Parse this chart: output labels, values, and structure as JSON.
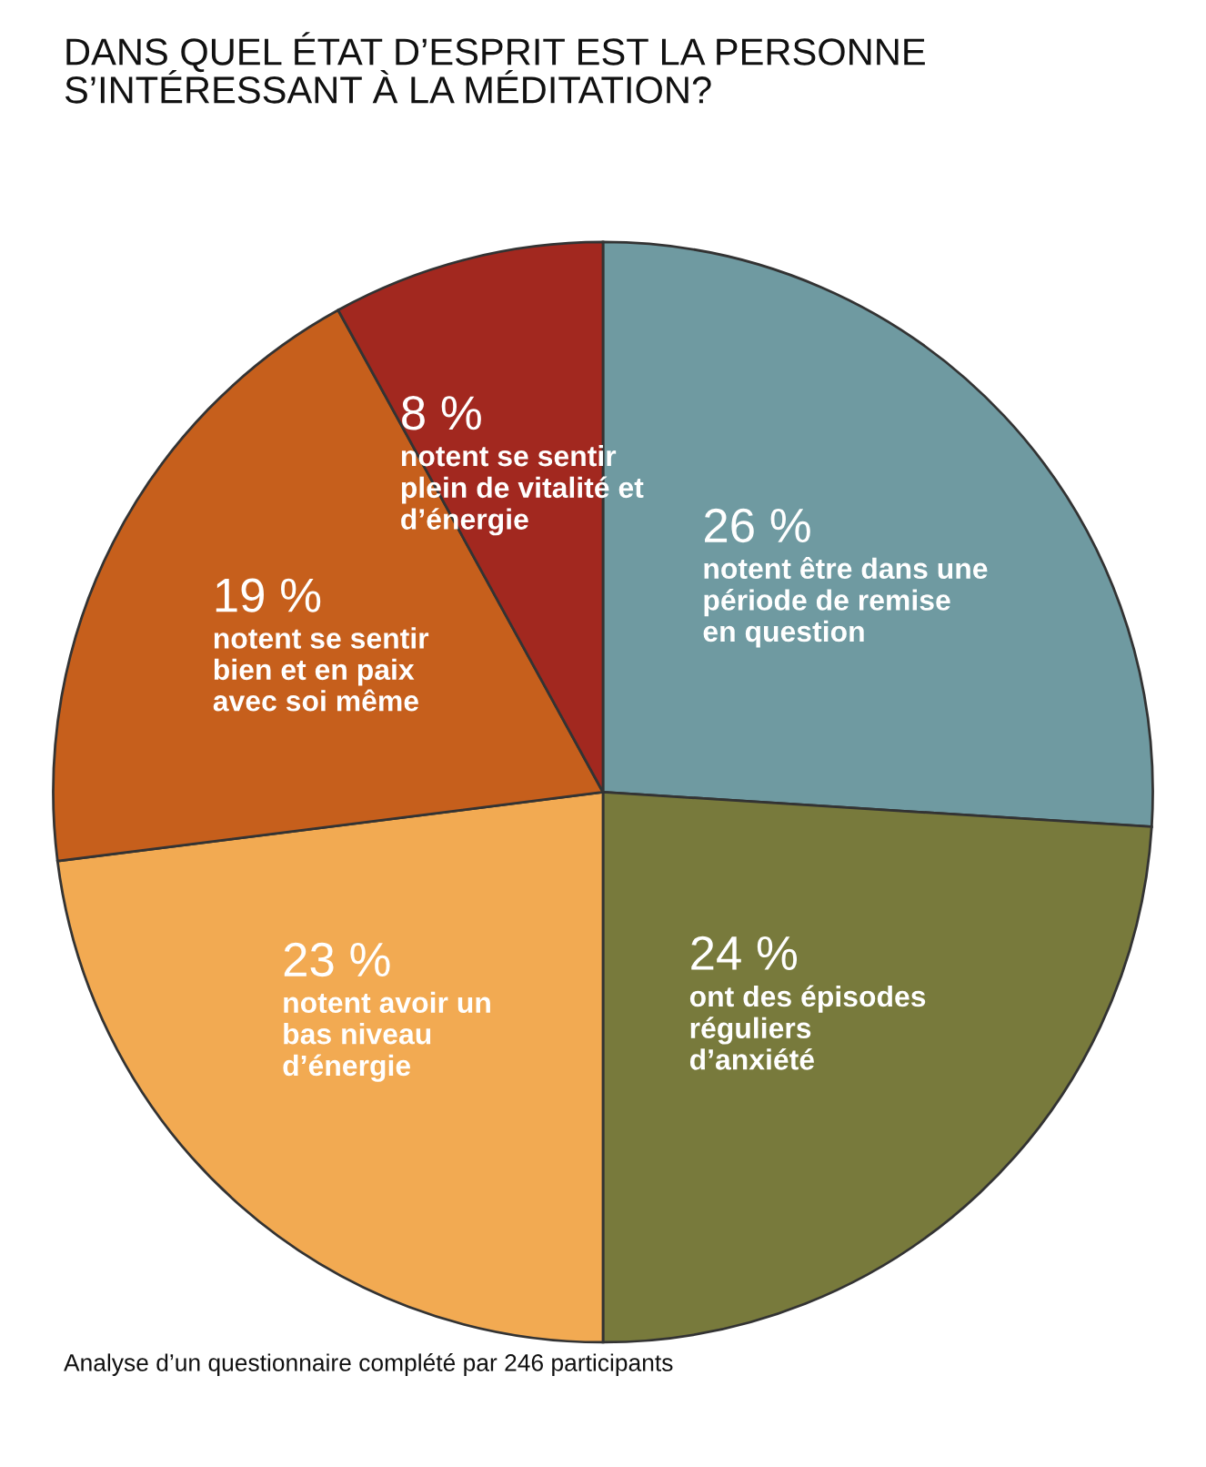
{
  "chart_data": {
    "type": "pie",
    "title": "DANS QUEL ÉTAT D’ESPRIT EST LA PERSONNE\nS’INTÉRESSANT À LA MÉDITATION?",
    "categories": [
      "notent être dans une\npériode de remise\nen question",
      "ont des épisodes\nréguliers\nd’anxiété",
      "notent avoir un\nbas niveau\nd’énergie",
      "notent se sentir\nbien et en paix\navec soi même",
      "notent se sentir\nplein de vitalité et\nd’énergie"
    ],
    "values": [
      26,
      24,
      23,
      19,
      8
    ],
    "value_labels": [
      "26 %",
      "24 %",
      "23 %",
      "19 %",
      "8 %"
    ],
    "colors": [
      "#6f9aa1",
      "#787a3c",
      "#f2aa52",
      "#c65f1c",
      "#a2281f"
    ],
    "annotations": [
      "Analyse d’un questionnaire complété par 246 participants"
    ],
    "legend": false
  }
}
